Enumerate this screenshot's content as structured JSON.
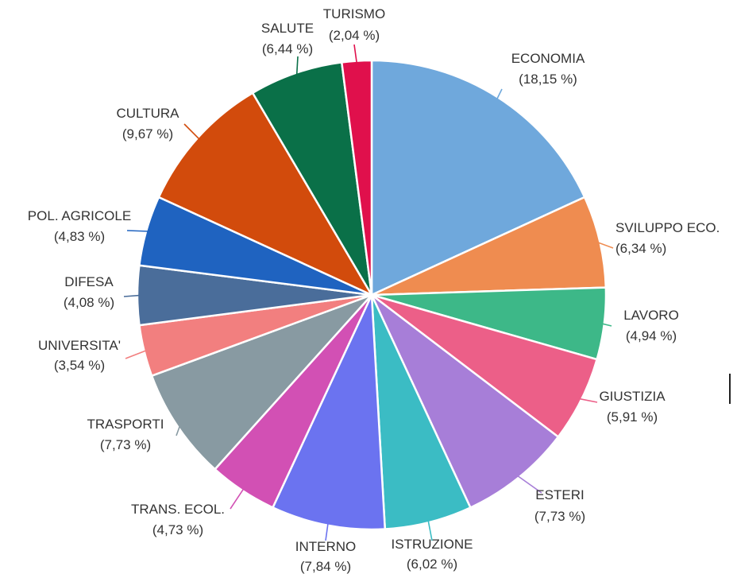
{
  "chart_data": {
    "type": "pie",
    "start_angle_deg": 0,
    "direction": "clockwise",
    "slices": [
      {
        "name": "ECONOMIA",
        "value": 18.15,
        "label": "(18,15 %)",
        "color": "#6fa8dc"
      },
      {
        "name": "SVILUPPO ECO.",
        "value": 6.34,
        "label": "(6,34 %)",
        "color": "#ef8c50"
      },
      {
        "name": "LAVORO",
        "value": 4.94,
        "label": "(4,94 %)",
        "color": "#3db888"
      },
      {
        "name": "GIUSTIZIA",
        "value": 5.91,
        "label": "(5,91 %)",
        "color": "#ec5f88"
      },
      {
        "name": "ESTERI",
        "value": 7.73,
        "label": "(7,73 %)",
        "color": "#a77ed8"
      },
      {
        "name": "ISTRUZIONE",
        "value": 6.02,
        "label": "(6,02 %)",
        "color": "#3bbcc4"
      },
      {
        "name": "INTERNO",
        "value": 7.84,
        "label": "(7,84 %)",
        "color": "#6b73f0"
      },
      {
        "name": "TRANS. ECOL.",
        "value": 4.73,
        "label": "(4,73 %)",
        "color": "#d250b4"
      },
      {
        "name": "TRASPORTI",
        "value": 7.73,
        "label": "(7,73 %)",
        "color": "#889aa2"
      },
      {
        "name": "UNIVERSITA'",
        "value": 3.54,
        "label": "(3,54 %)",
        "color": "#f27f7f"
      },
      {
        "name": "DIFESA",
        "value": 4.08,
        "label": "(4,08 %)",
        "color": "#4a6d9a"
      },
      {
        "name": "POL. AGRICOLE",
        "value": 4.83,
        "label": "(4,83 %)",
        "color": "#1f63c0"
      },
      {
        "name": "CULTURA",
        "value": 9.67,
        "label": "(9,67 %)",
        "color": "#d24b0c"
      },
      {
        "name": "SALUTE",
        "value": 6.44,
        "label": "(6,44 %)",
        "color": "#0a7048"
      },
      {
        "name": "TURISMO",
        "value": 2.04,
        "label": "(2,04 %)",
        "color": "#e0104c"
      }
    ]
  }
}
